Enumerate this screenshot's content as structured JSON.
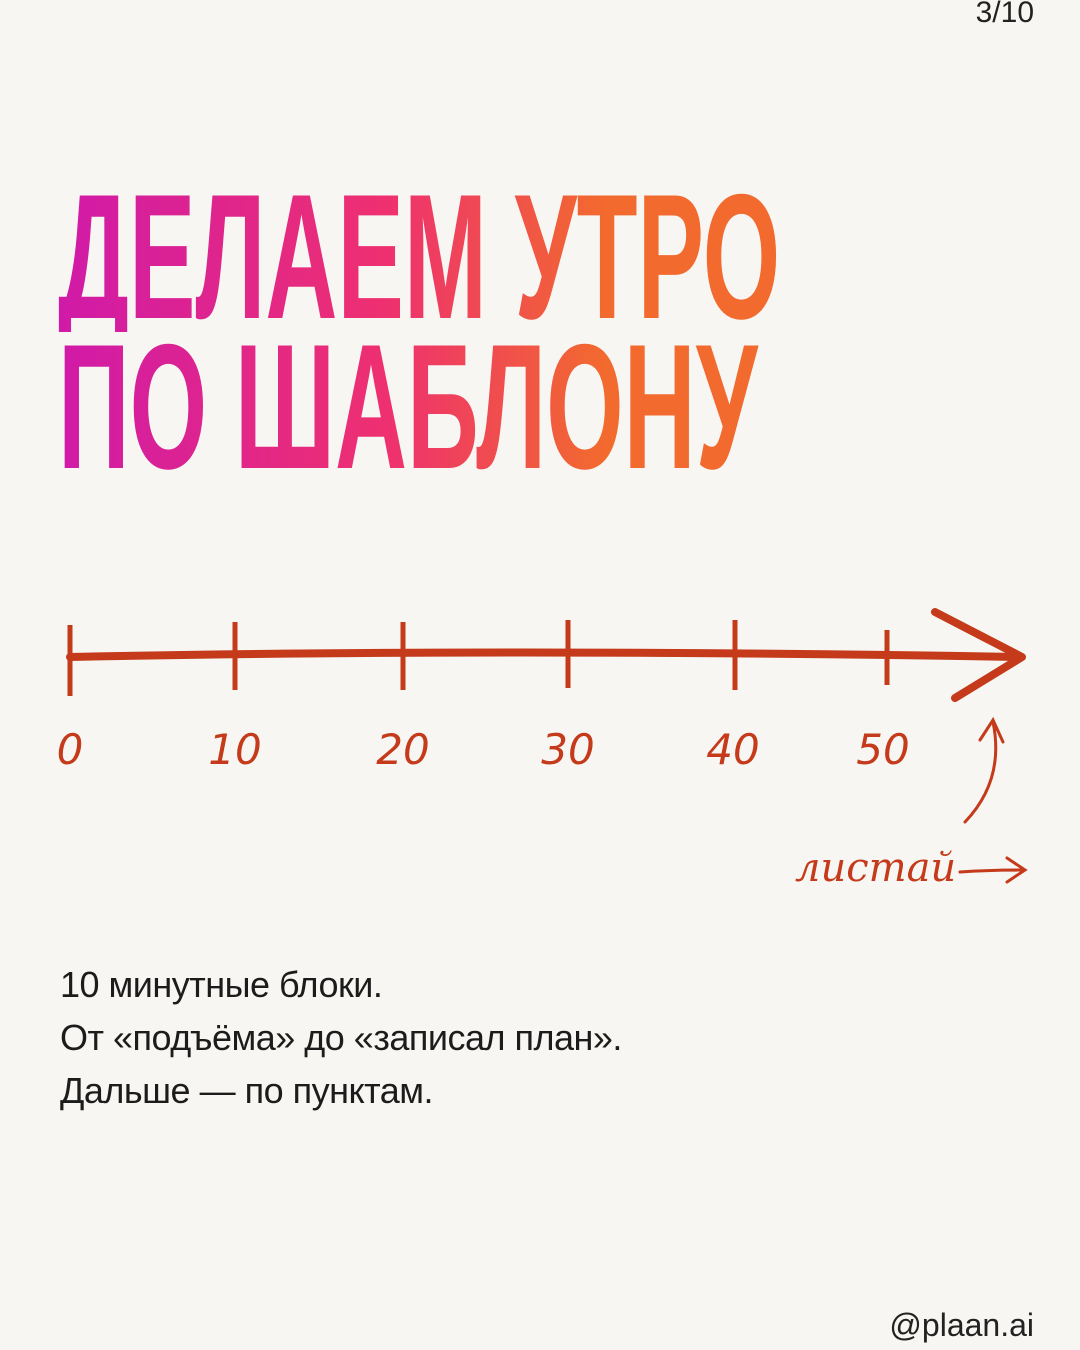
{
  "page_indicator": "3/10",
  "title": {
    "line1": "ДЕЛАЕМ УТРО",
    "line2": "ПО ШАБЛОНУ →"
  },
  "colors": {
    "gradient_start": "#d01aa8",
    "gradient_end": "#f26a2e",
    "sketch": "#c43a1a"
  },
  "timeline": {
    "ticks": [
      "0",
      "10",
      "20",
      "30",
      "40",
      "50"
    ],
    "arrow_icon": "arrow-right-icon"
  },
  "swipe_hint": {
    "label": "листай",
    "icon": "arrow-right-icon"
  },
  "body": {
    "lines": [
      "10 минутные блоки.",
      "От «подъёма» до «записал план».",
      "Дальше — по пунктам."
    ]
  },
  "handle": "@plaan.ai"
}
